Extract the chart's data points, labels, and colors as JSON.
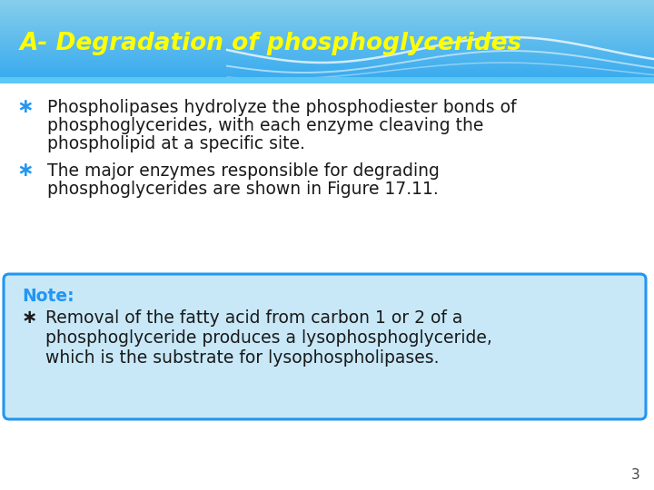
{
  "title": "A- Degradation of phosphoglycerides",
  "title_color": "#FFFF00",
  "bg_color": "#FFFFFF",
  "bullet1_line1": "Phospholipases hydrolyze the phosphodiester bonds of",
  "bullet1_line2": "phosphoglycerides, with each enzyme cleaving the",
  "bullet1_line3": "phospholipid at a specific site.",
  "bullet2_line1": "The major enzymes responsible for degrading",
  "bullet2_line2": "phosphoglycerides are shown in Figure 17.11.",
  "bullet_color": "#2196F3",
  "bullet_text_color": "#1A1A1A",
  "note_label": "Note:",
  "note_label_color": "#2196F3",
  "note_bullet_color": "#1A1A1A",
  "note_line1": "Removal of the fatty acid from carbon 1 or 2 of a",
  "note_line2": "phosphoglyceride produces a lysophosphoglyceride,",
  "note_line3": "which is the substrate for lysophospholipases.",
  "note_bg": "#C8E8F8",
  "note_border": "#2196F3",
  "note_text_color": "#1A1A1A",
  "page_number": "3",
  "header_top_color": "#87CEEB",
  "header_bot_color": "#3AACEF",
  "header_bar_color": "#5BC8F5"
}
